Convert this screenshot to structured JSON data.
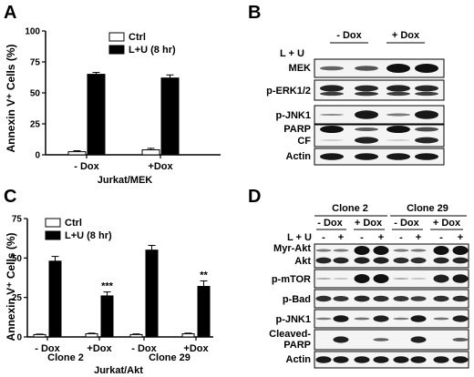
{
  "panels": {
    "A": "A",
    "B": "B",
    "C": "C",
    "D": "D"
  },
  "chart_data": [
    {
      "type": "bar",
      "panel": "A",
      "ylabel": "Annexin V⁺ Cells (%)",
      "xlabel": "Jurkat/MEK",
      "categories": [
        "- Dox",
        "+Dox"
      ],
      "ylim": [
        0,
        100
      ],
      "yticks": [
        "0",
        "25",
        "50",
        "75",
        "100"
      ],
      "series": [
        {
          "name": "Ctrl",
          "values": [
            2.5,
            4
          ],
          "errors": [
            0.8,
            1.2
          ],
          "color": "#ffffff"
        },
        {
          "name": "L+U (8 hr)",
          "values": [
            65,
            62
          ],
          "errors": [
            1.5,
            2.5
          ],
          "color": "#000000"
        }
      ],
      "annotations": [
        "",
        ""
      ]
    },
    {
      "type": "bar",
      "panel": "C",
      "ylabel": "Annexin V⁺ Cells (%)",
      "xlabel": "Jurkat/Akt",
      "groups": [
        "Clone 2",
        "Clone 29"
      ],
      "categories": [
        "- Dox",
        "+Dox",
        "- Dox",
        "+Dox"
      ],
      "ylim": [
        0,
        75
      ],
      "yticks": [
        "0",
        "25",
        "50",
        "75"
      ],
      "series": [
        {
          "name": "Ctrl",
          "values": [
            1.5,
            2,
            1.5,
            2
          ],
          "errors": [
            0.3,
            0.4,
            0.4,
            0.4
          ],
          "color": "#ffffff"
        },
        {
          "name": "L+U (8 hr)",
          "values": [
            48,
            26,
            55,
            32
          ],
          "errors": [
            3,
            2.5,
            3,
            3.5
          ],
          "color": "#000000"
        }
      ],
      "annotations": [
        "",
        "***",
        "",
        "**"
      ]
    }
  ],
  "blotB": {
    "header_left": "- Dox",
    "header_right": "+ Dox",
    "treatment": "L + U",
    "lane_signs": [
      "-",
      "+",
      "-",
      "+"
    ],
    "rows": [
      "MEK",
      "p-ERK1/2",
      "p-JNK1",
      "PARP",
      "CF",
      "Actin"
    ]
  },
  "blotD": {
    "clone_left": "Clone 2",
    "clone_right": "Clone 29",
    "dox": [
      "- Dox",
      "+ Dox",
      "- Dox",
      "+ Dox"
    ],
    "treatment": "L + U",
    "lane_signs": [
      "-",
      "+",
      "-",
      "+",
      "-",
      "+",
      "-",
      "+"
    ],
    "rows": [
      "Myr-Akt",
      "Akt",
      "p-mTOR",
      "p-Bad",
      "p-JNK1",
      "Cleaved-",
      "PARP",
      "Actin"
    ]
  }
}
